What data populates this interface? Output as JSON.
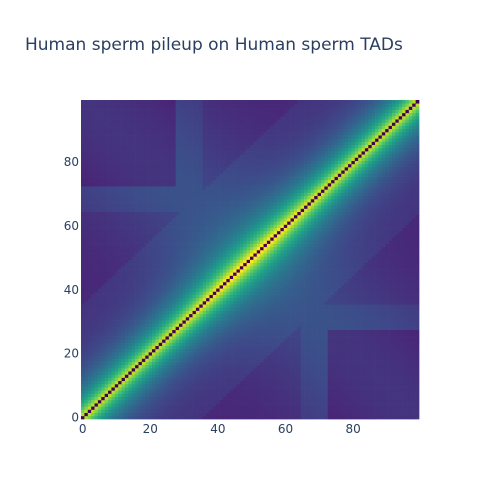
{
  "chart_data": {
    "type": "heatmap",
    "title": "Human sperm pileup on Human sperm TADs",
    "xlabel": "",
    "ylabel": "",
    "x_range": [
      0,
      99
    ],
    "y_range": [
      0,
      99
    ],
    "x_ticks": [
      0,
      20,
      40,
      60,
      80
    ],
    "y_ticks": [
      0,
      20,
      40,
      60,
      80
    ],
    "grid_size": 100,
    "tad_boundaries": [
      30,
      70
    ],
    "colorscale": [
      "#440154",
      "#482878",
      "#3e4989",
      "#31688e",
      "#26828e",
      "#1f9e89",
      "#35b779",
      "#6ece58",
      "#b5de2b",
      "#fde725"
    ],
    "diagonal_color": "#440154",
    "colorbar": false,
    "legend": "none"
  }
}
